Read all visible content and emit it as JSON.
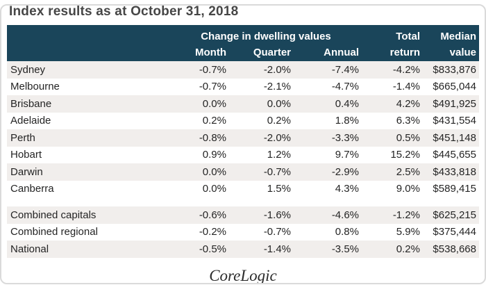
{
  "title": "Index results as at October 31, 2018",
  "header": {
    "group_label": "Change in dwelling values",
    "month": "Month",
    "quarter": "Quarter",
    "annual": "Annual",
    "total_line1": "Total",
    "total_line2": "return",
    "median_line1": "Median",
    "median_line2": "value"
  },
  "footer": {
    "brand": "CoreLogic"
  },
  "colors": {
    "header_bg": "#1a455a",
    "header_text": "#ffffff",
    "row_stripe": "#f1eeec",
    "body_text": "#242424",
    "title_text": "#464646"
  },
  "chart_data": {
    "type": "table",
    "title": "Index results as at October 31, 2018",
    "column_group": "Change in dwelling values (Month, Quarter, Annual)",
    "columns": [
      "",
      "Month",
      "Quarter",
      "Annual",
      "Total return",
      "Median value"
    ],
    "rows": [
      [
        "Sydney",
        "-0.7%",
        "-2.0%",
        "-7.4%",
        "-4.2%",
        "$833,876"
      ],
      [
        "Melbourne",
        "-0.7%",
        "-2.1%",
        "-4.7%",
        "-1.4%",
        "$665,044"
      ],
      [
        "Brisbane",
        "0.0%",
        "0.0%",
        "0.4%",
        "4.2%",
        "$491,925"
      ],
      [
        "Adelaide",
        "0.2%",
        "0.2%",
        "1.8%",
        "6.3%",
        "$431,554"
      ],
      [
        "Perth",
        "-0.8%",
        "-2.0%",
        "-3.3%",
        "0.5%",
        "$451,148"
      ],
      [
        "Hobart",
        "0.9%",
        "1.2%",
        "9.7%",
        "15.2%",
        "$445,655"
      ],
      [
        "Darwin",
        "0.0%",
        "-0.7%",
        "-2.9%",
        "2.5%",
        "$433,818"
      ],
      [
        "Canberra",
        "0.0%",
        "1.5%",
        "4.3%",
        "9.0%",
        "$589,415"
      ],
      [
        "Combined capitals",
        "-0.6%",
        "-1.6%",
        "-4.6%",
        "-1.2%",
        "$625,215"
      ],
      [
        "Combined regional",
        "-0.2%",
        "-0.7%",
        "0.8%",
        "5.9%",
        "$375,444"
      ],
      [
        "National",
        "-0.5%",
        "-1.4%",
        "-3.5%",
        "0.2%",
        "$538,668"
      ]
    ]
  }
}
